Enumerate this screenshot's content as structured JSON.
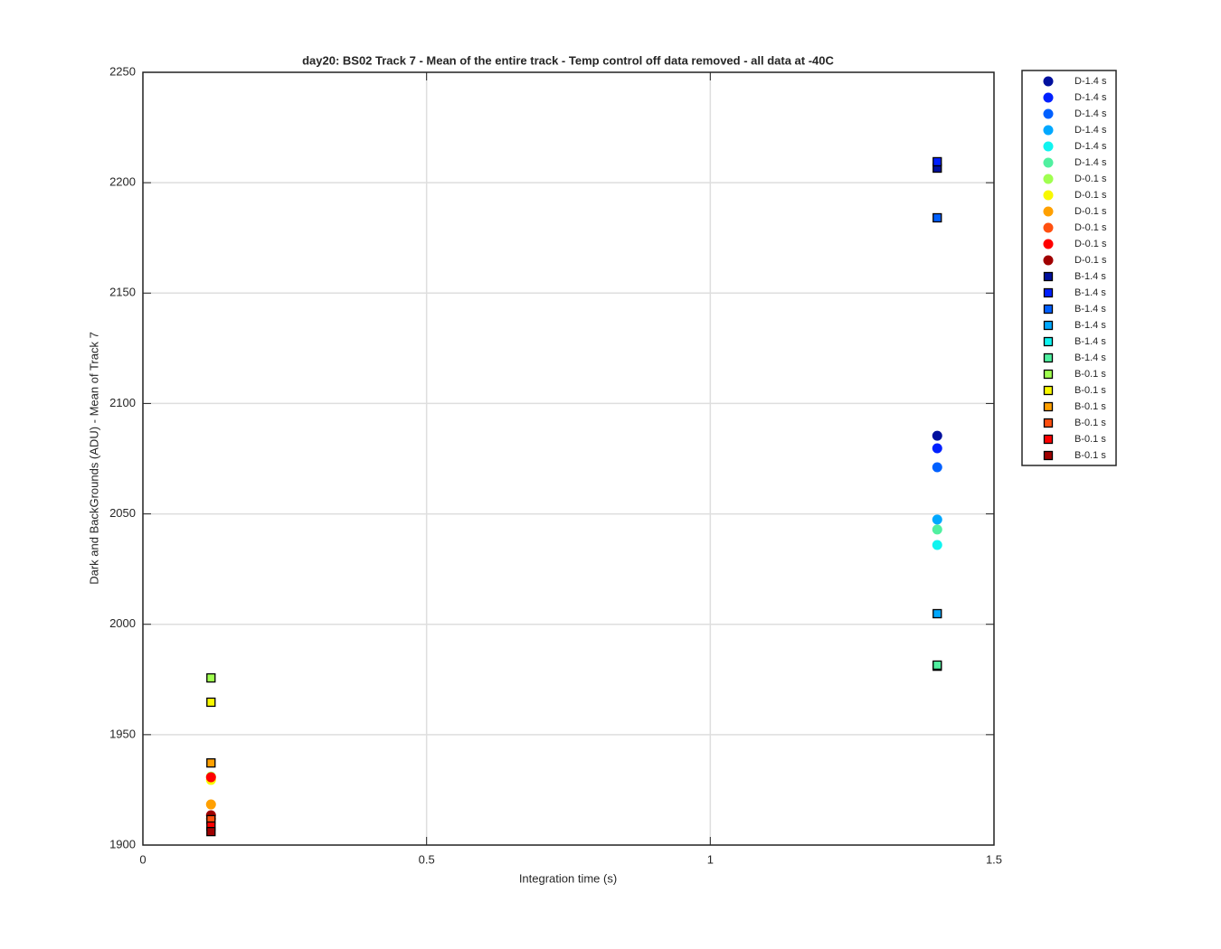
{
  "chart_data": {
    "type": "scatter",
    "title": "day20: BS02  Track 7 - Mean of the entire track - Temp control off data removed - all data at -40C",
    "xlabel": "Integration time (s)",
    "ylabel": "Dark and BackGrounds (ADU) - Mean of Track 7",
    "xlim": [
      0,
      1.5
    ],
    "xticks": [
      0,
      0.5,
      1,
      1.5
    ],
    "ylim": [
      1900,
      2250
    ],
    "yticks": [
      1900,
      1950,
      2000,
      2050,
      2100,
      2150,
      2200,
      2250
    ],
    "grid": true,
    "legend": "outside",
    "series": [
      {
        "name": "D-1.4 s",
        "color": "#00109e",
        "marker": "circle",
        "x": [
          1.4
        ],
        "values": [
          2085.4
        ]
      },
      {
        "name": "D-1.4 s",
        "color": "#0020ff",
        "marker": "circle",
        "x": [
          1.4
        ],
        "values": [
          2079.7
        ]
      },
      {
        "name": "D-1.4 s",
        "color": "#0060ff",
        "marker": "circle",
        "x": [
          1.4
        ],
        "values": [
          2071.1
        ]
      },
      {
        "name": "D-1.4 s",
        "color": "#00a8ff",
        "marker": "circle",
        "x": [
          1.4
        ],
        "values": [
          2047.4
        ]
      },
      {
        "name": "D-1.4 s",
        "color": "#10f4f0",
        "marker": "circle",
        "x": [
          1.4
        ],
        "values": [
          2035.9
        ]
      },
      {
        "name": "D-1.4 s",
        "color": "#50f0a0",
        "marker": "circle",
        "x": [
          1.4
        ],
        "values": [
          2042.9
        ]
      },
      {
        "name": "D-0.1 s",
        "color": "#a0ff50",
        "marker": "circle",
        "x": [
          0.12
        ],
        "values": [
          1931.0
        ]
      },
      {
        "name": "D-0.1 s",
        "color": "#f8f800",
        "marker": "circle",
        "x": [
          0.12
        ],
        "values": [
          1929.5
        ]
      },
      {
        "name": "D-0.1 s",
        "color": "#ffa000",
        "marker": "circle",
        "x": [
          0.12
        ],
        "values": [
          1918.4
        ]
      },
      {
        "name": "D-0.1 s",
        "color": "#ff5010",
        "marker": "circle",
        "x": [
          0.12
        ],
        "values": [
          1911.9
        ]
      },
      {
        "name": "D-0.1 s",
        "color": "#ff0000",
        "marker": "circle",
        "x": [
          0.12
        ],
        "values": [
          1930.7
        ]
      },
      {
        "name": "D-0.1 s",
        "color": "#a00000",
        "marker": "circle",
        "x": [
          0.12
        ],
        "values": [
          1913.5
        ]
      },
      {
        "name": "B-1.4 s",
        "color": "#00109e",
        "marker": "square",
        "x": [
          1.4
        ],
        "values": [
          2206.6
        ]
      },
      {
        "name": "B-1.4 s",
        "color": "#0020ff",
        "marker": "square",
        "x": [
          1.4
        ],
        "values": [
          2209.5
        ]
      },
      {
        "name": "B-1.4 s",
        "color": "#0060ff",
        "marker": "square",
        "x": [
          1.4
        ],
        "values": [
          2184.1
        ]
      },
      {
        "name": "B-1.4 s",
        "color": "#00a8ff",
        "marker": "square",
        "x": [
          1.4
        ],
        "values": [
          2004.8
        ]
      },
      {
        "name": "B-1.4 s",
        "color": "#10f4f0",
        "marker": "square",
        "x": [
          1.4
        ],
        "values": [
          1981.0
        ]
      },
      {
        "name": "B-1.4 s",
        "color": "#50f0a0",
        "marker": "square",
        "x": [
          1.4
        ],
        "values": [
          1981.5
        ]
      },
      {
        "name": "B-0.1 s",
        "color": "#a0ff50",
        "marker": "square",
        "x": [
          0.12
        ],
        "values": [
          1975.7
        ]
      },
      {
        "name": "B-0.1 s",
        "color": "#f8f800",
        "marker": "square",
        "x": [
          0.12
        ],
        "values": [
          1964.7
        ]
      },
      {
        "name": "B-0.1 s",
        "color": "#ffa000",
        "marker": "square",
        "x": [
          0.12
        ],
        "values": [
          1937.2
        ]
      },
      {
        "name": "B-0.1 s",
        "color": "#ff5010",
        "marker": "square",
        "x": [
          0.12
        ],
        "values": [
          1911.5
        ]
      },
      {
        "name": "B-0.1 s",
        "color": "#ff0000",
        "marker": "square",
        "x": [
          0.12
        ],
        "values": [
          1908.6
        ]
      },
      {
        "name": "B-0.1 s",
        "color": "#a00000",
        "marker": "square",
        "x": [
          0.12
        ],
        "values": [
          1906.1
        ]
      }
    ]
  }
}
